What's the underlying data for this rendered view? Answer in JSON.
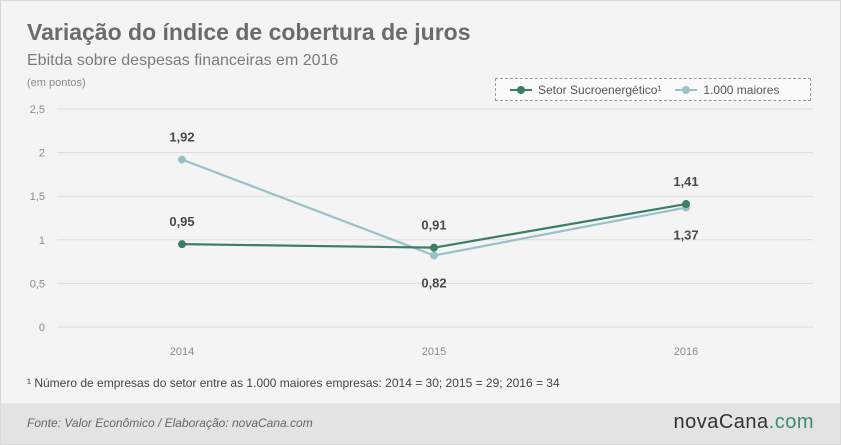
{
  "header": {
    "title": "Variação do índice de cobertura de juros",
    "subtitle": "Ebitda sobre despesas financeiras em 2016",
    "unit": "(em pontos)"
  },
  "legend": {
    "items": [
      {
        "label": "Setor Sucroenergético¹",
        "color": "#3a7d68"
      },
      {
        "label": "1.000 maiores",
        "color": "#9bc1c8"
      }
    ]
  },
  "footnote": "¹ Número de empresas do setor entre as 1.000 maiores empresas: 2014 = 30; 2015 = 29; 2016 = 34",
  "footer": {
    "source": "Fonte: Valor Econômico / Elaboração: novaCana.com",
    "brand_main": "novaCana",
    "brand_suffix": ".com"
  },
  "chart_data": {
    "type": "line",
    "title": "Variação do índice de cobertura de juros",
    "subtitle": "Ebitda sobre despesas financeiras em 2016",
    "ylabel": "(em pontos)",
    "x": [
      "2014",
      "2015",
      "2016"
    ],
    "ylim": [
      0,
      2.5
    ],
    "yticks": [
      0,
      0.5,
      1,
      1.5,
      2,
      2.5
    ],
    "ytick_labels": [
      "0",
      "0,5",
      "1",
      "1,5",
      "2",
      "2,5"
    ],
    "grid": "horizontal",
    "legend_position": "top-right",
    "series": [
      {
        "name": "Setor Sucroenergético¹",
        "color": "#3a7d68",
        "values": [
          0.95,
          0.91,
          1.41
        ],
        "labels": [
          "0,95",
          "0,91",
          "1,41"
        ],
        "label_position": [
          "above",
          "above",
          "above"
        ]
      },
      {
        "name": "1.000 maiores",
        "color": "#9bc1c8",
        "values": [
          1.92,
          0.82,
          1.37
        ],
        "labels": [
          "1,92",
          "0,82",
          "1,37"
        ],
        "label_position": [
          "above",
          "below",
          "below"
        ]
      }
    ]
  }
}
